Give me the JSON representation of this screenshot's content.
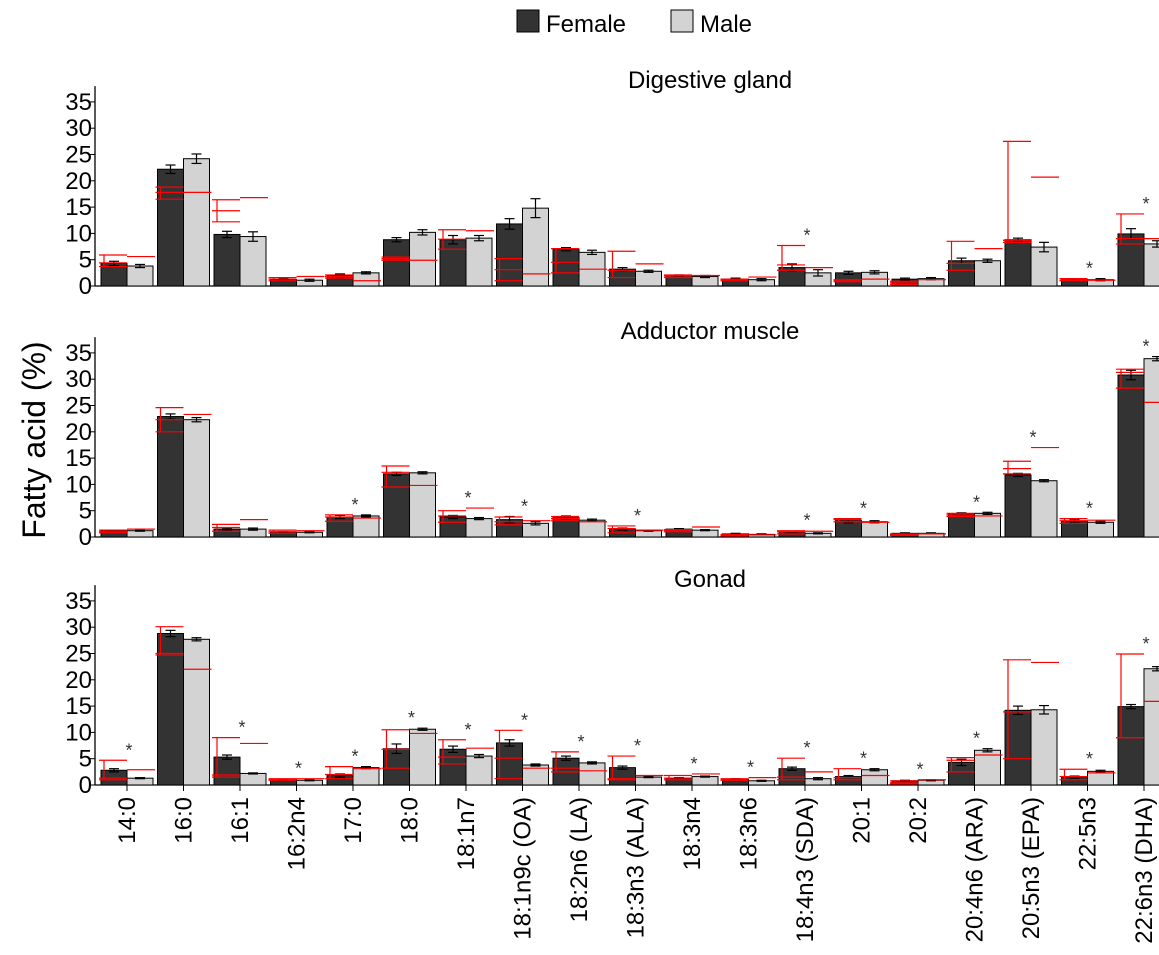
{
  "chart_data": {
    "type": "bar",
    "ylabel": "Fatty acid (%)",
    "legend": {
      "position": "top-center",
      "items": [
        "Female",
        "Male"
      ]
    },
    "colors": {
      "female": "#333333",
      "male": "#d3d3d3",
      "overlay": "#ff0000",
      "star": "#333333"
    },
    "ylim": [
      0,
      38
    ],
    "yticks": [
      0,
      5,
      10,
      15,
      20,
      25,
      30,
      35
    ],
    "categories": [
      "14:0",
      "16:0",
      "16:1",
      "16:2n4",
      "17:0",
      "18:0",
      "18:1n7",
      "18:1n9c (OA)",
      "18:2n6 (LA)",
      "18:3n3 (ALA)",
      "18:3n4",
      "18:3n6",
      "18:4n3 (SDA)",
      "20:1",
      "20:2",
      "20:4n6 (ARA)",
      "20:5n3 (EPA)",
      "22:5n3",
      "22:6n3 (DHA)"
    ],
    "panels": [
      {
        "title": "Digestive gland",
        "female": [
          4.3,
          22.2,
          9.8,
          1.2,
          2.0,
          8.8,
          8.8,
          11.8,
          7.0,
          3.2,
          1.9,
          1.3,
          3.5,
          2.5,
          1.3,
          4.8,
          8.8,
          1.2,
          9.9
        ],
        "female_err": [
          0.4,
          0.8,
          0.6,
          0.2,
          0.3,
          0.4,
          0.8,
          1.0,
          0.3,
          0.3,
          0.2,
          0.2,
          0.7,
          0.3,
          0.2,
          0.5,
          0.3,
          0.2,
          1.0
        ],
        "male": [
          3.8,
          24.2,
          9.4,
          1.1,
          2.5,
          10.2,
          9.1,
          14.8,
          6.4,
          2.8,
          1.8,
          1.2,
          2.5,
          2.6,
          1.4,
          4.8,
          7.4,
          1.2,
          8.0
        ],
        "male_err": [
          0.3,
          0.9,
          0.9,
          0.2,
          0.2,
          0.5,
          0.5,
          1.8,
          0.4,
          0.2,
          0.2,
          0.2,
          0.6,
          0.3,
          0.2,
          0.3,
          0.9,
          0.2,
          0.6
        ],
        "red_female_mean": [
          4.4,
          17.8,
          14.3,
          1.3,
          1.8,
          5.2,
          8.9,
          3.1,
          4.5,
          3.0,
          1.9,
          1.2,
          4.0,
          1.0,
          0.6,
          4.3,
          8.3,
          1.1,
          9.0
        ],
        "red_female_range": [
          [
            3.7,
            5.9
          ],
          [
            16.5,
            18.8
          ],
          [
            12.2,
            16.4
          ],
          [
            1.0,
            1.6
          ],
          [
            1.5,
            2.1
          ],
          [
            4.9,
            5.5
          ],
          [
            7.0,
            10.7
          ],
          [
            1.0,
            5.2
          ],
          [
            2.5,
            7.1
          ],
          [
            1.6,
            6.6
          ],
          [
            1.6,
            2.1
          ],
          [
            1.0,
            1.3
          ],
          [
            3.0,
            7.7
          ],
          [
            0.8,
            1.2
          ],
          [
            0.3,
            0.9
          ],
          [
            3.0,
            8.5
          ],
          [
            8.7,
            27.5
          ],
          [
            1.0,
            1.4
          ],
          [
            8.0,
            13.7
          ]
        ],
        "red_male_mean": [
          5.6,
          17.8,
          16.8,
          1.8,
          1.0,
          4.9,
          10.5,
          2.3,
          3.2,
          4.2,
          2.0,
          1.7,
          3.5,
          1.3,
          1.2,
          7.1,
          20.7,
          1.1,
          9.0
        ],
        "stars": [
          false,
          false,
          false,
          false,
          false,
          false,
          false,
          false,
          false,
          false,
          false,
          false,
          true,
          false,
          false,
          false,
          false,
          true,
          true
        ]
      },
      {
        "title": "Adductor muscle",
        "female": [
          1.2,
          22.9,
          1.5,
          0.9,
          3.8,
          12.0,
          3.8,
          3.3,
          3.7,
          1.5,
          1.5,
          0.6,
          0.8,
          3.1,
          0.7,
          4.4,
          11.8,
          3.0,
          30.8
        ],
        "female_err": [
          0.1,
          0.5,
          0.2,
          0.1,
          0.3,
          0.3,
          0.3,
          0.6,
          0.3,
          0.2,
          0.1,
          0.1,
          0.1,
          0.4,
          0.1,
          0.2,
          0.3,
          0.3,
          0.9
        ],
        "male": [
          1.2,
          22.3,
          1.5,
          0.9,
          4.0,
          12.2,
          3.5,
          2.6,
          3.2,
          1.2,
          1.3,
          0.5,
          0.7,
          2.9,
          0.7,
          4.5,
          10.7,
          2.8,
          33.9
        ],
        "male_err": [
          0.1,
          0.4,
          0.2,
          0.1,
          0.2,
          0.2,
          0.2,
          0.3,
          0.2,
          0.1,
          0.1,
          0.1,
          0.1,
          0.2,
          0.1,
          0.2,
          0.2,
          0.2,
          0.4
        ],
        "red_female_mean": [
          1.0,
          22.3,
          1.8,
          1.0,
          3.8,
          12.3,
          4.0,
          2.9,
          3.5,
          1.6,
          1.2,
          0.3,
          1.0,
          3.3,
          0.5,
          4.2,
          13.0,
          3.1,
          31.3
        ],
        "red_female_range": [
          [
            0.8,
            1.3
          ],
          [
            20.0,
            24.6
          ],
          [
            1.1,
            2.4
          ],
          [
            0.7,
            1.3
          ],
          [
            3.0,
            4.2
          ],
          [
            9.5,
            13.5
          ],
          [
            2.8,
            5.0
          ],
          [
            2.3,
            3.8
          ],
          [
            3.1,
            3.9
          ],
          [
            0.8,
            2.1
          ],
          [
            1.0,
            1.4
          ],
          [
            0.2,
            0.5
          ],
          [
            0.6,
            1.2
          ],
          [
            2.9,
            3.5
          ],
          [
            0.3,
            0.6
          ],
          [
            3.9,
            4.5
          ],
          [
            12.0,
            14.4
          ],
          [
            2.6,
            3.5
          ],
          [
            28.3,
            31.9
          ]
        ],
        "red_male_mean": [
          1.5,
          23.3,
          3.3,
          1.2,
          3.6,
          9.8,
          5.5,
          3.1,
          2.9,
          1.3,
          1.9,
          0.4,
          1.1,
          2.8,
          0.6,
          4.0,
          17.0,
          3.2,
          25.6
        ],
        "stars": [
          false,
          false,
          false,
          false,
          true,
          false,
          true,
          true,
          false,
          true,
          false,
          false,
          true,
          true,
          false,
          true,
          true,
          true,
          true
        ]
      },
      {
        "title": "Gonad",
        "female": [
          2.8,
          28.8,
          5.3,
          1.0,
          1.8,
          6.9,
          6.8,
          8.0,
          5.1,
          3.3,
          1.2,
          1.1,
          3.1,
          1.6,
          0.8,
          4.3,
          14.2,
          1.5,
          14.9
        ],
        "female_err": [
          0.3,
          0.6,
          0.4,
          0.1,
          0.3,
          0.9,
          0.6,
          0.6,
          0.4,
          0.3,
          0.2,
          0.1,
          0.3,
          0.2,
          0.1,
          0.6,
          0.8,
          0.2,
          0.4
        ],
        "male": [
          1.3,
          27.7,
          2.2,
          0.9,
          3.3,
          10.6,
          5.5,
          3.8,
          4.2,
          1.5,
          1.6,
          0.8,
          1.2,
          2.9,
          0.9,
          6.6,
          14.3,
          2.6,
          22.1
        ],
        "male_err": [
          0.1,
          0.3,
          0.1,
          0.1,
          0.2,
          0.2,
          0.3,
          0.2,
          0.2,
          0.1,
          0.1,
          0.1,
          0.2,
          0.2,
          0.1,
          0.3,
          0.8,
          0.2,
          0.4
        ],
        "red_female_mean": [
          1.3,
          25.0,
          1.9,
          1.0,
          2.0,
          6.8,
          5.3,
          5.1,
          3.2,
          1.2,
          1.3,
          1.0,
          1.5,
          1.4,
          0.4,
          4.7,
          13.9,
          1.6,
          9.0
        ],
        "red_female_range": [
          [
            1.0,
            4.7
          ],
          [
            24.7,
            30.1
          ],
          [
            1.5,
            9.0
          ],
          [
            0.9,
            1.2
          ],
          [
            1.2,
            3.5
          ],
          [
            3.2,
            10.5
          ],
          [
            4.0,
            8.6
          ],
          [
            1.2,
            10.4
          ],
          [
            2.5,
            6.3
          ],
          [
            1.0,
            5.5
          ],
          [
            1.0,
            1.8
          ],
          [
            0.9,
            1.2
          ],
          [
            1.0,
            5.1
          ],
          [
            1.0,
            3.1
          ],
          [
            0.2,
            0.8
          ],
          [
            2.5,
            5.2
          ],
          [
            5.0,
            23.8
          ],
          [
            1.0,
            3.0
          ],
          [
            9.0,
            24.9
          ]
        ],
        "red_male_mean": [
          2.9,
          22.0,
          7.9,
          1.2,
          3.1,
          9.8,
          7.0,
          3.2,
          2.7,
          1.8,
          2.1,
          1.4,
          2.5,
          1.8,
          1.0,
          5.7,
          23.3,
          2.3,
          15.9
        ],
        "stars": [
          true,
          false,
          true,
          true,
          true,
          true,
          true,
          true,
          true,
          true,
          true,
          true,
          true,
          true,
          true,
          true,
          false,
          true,
          true
        ]
      }
    ]
  }
}
